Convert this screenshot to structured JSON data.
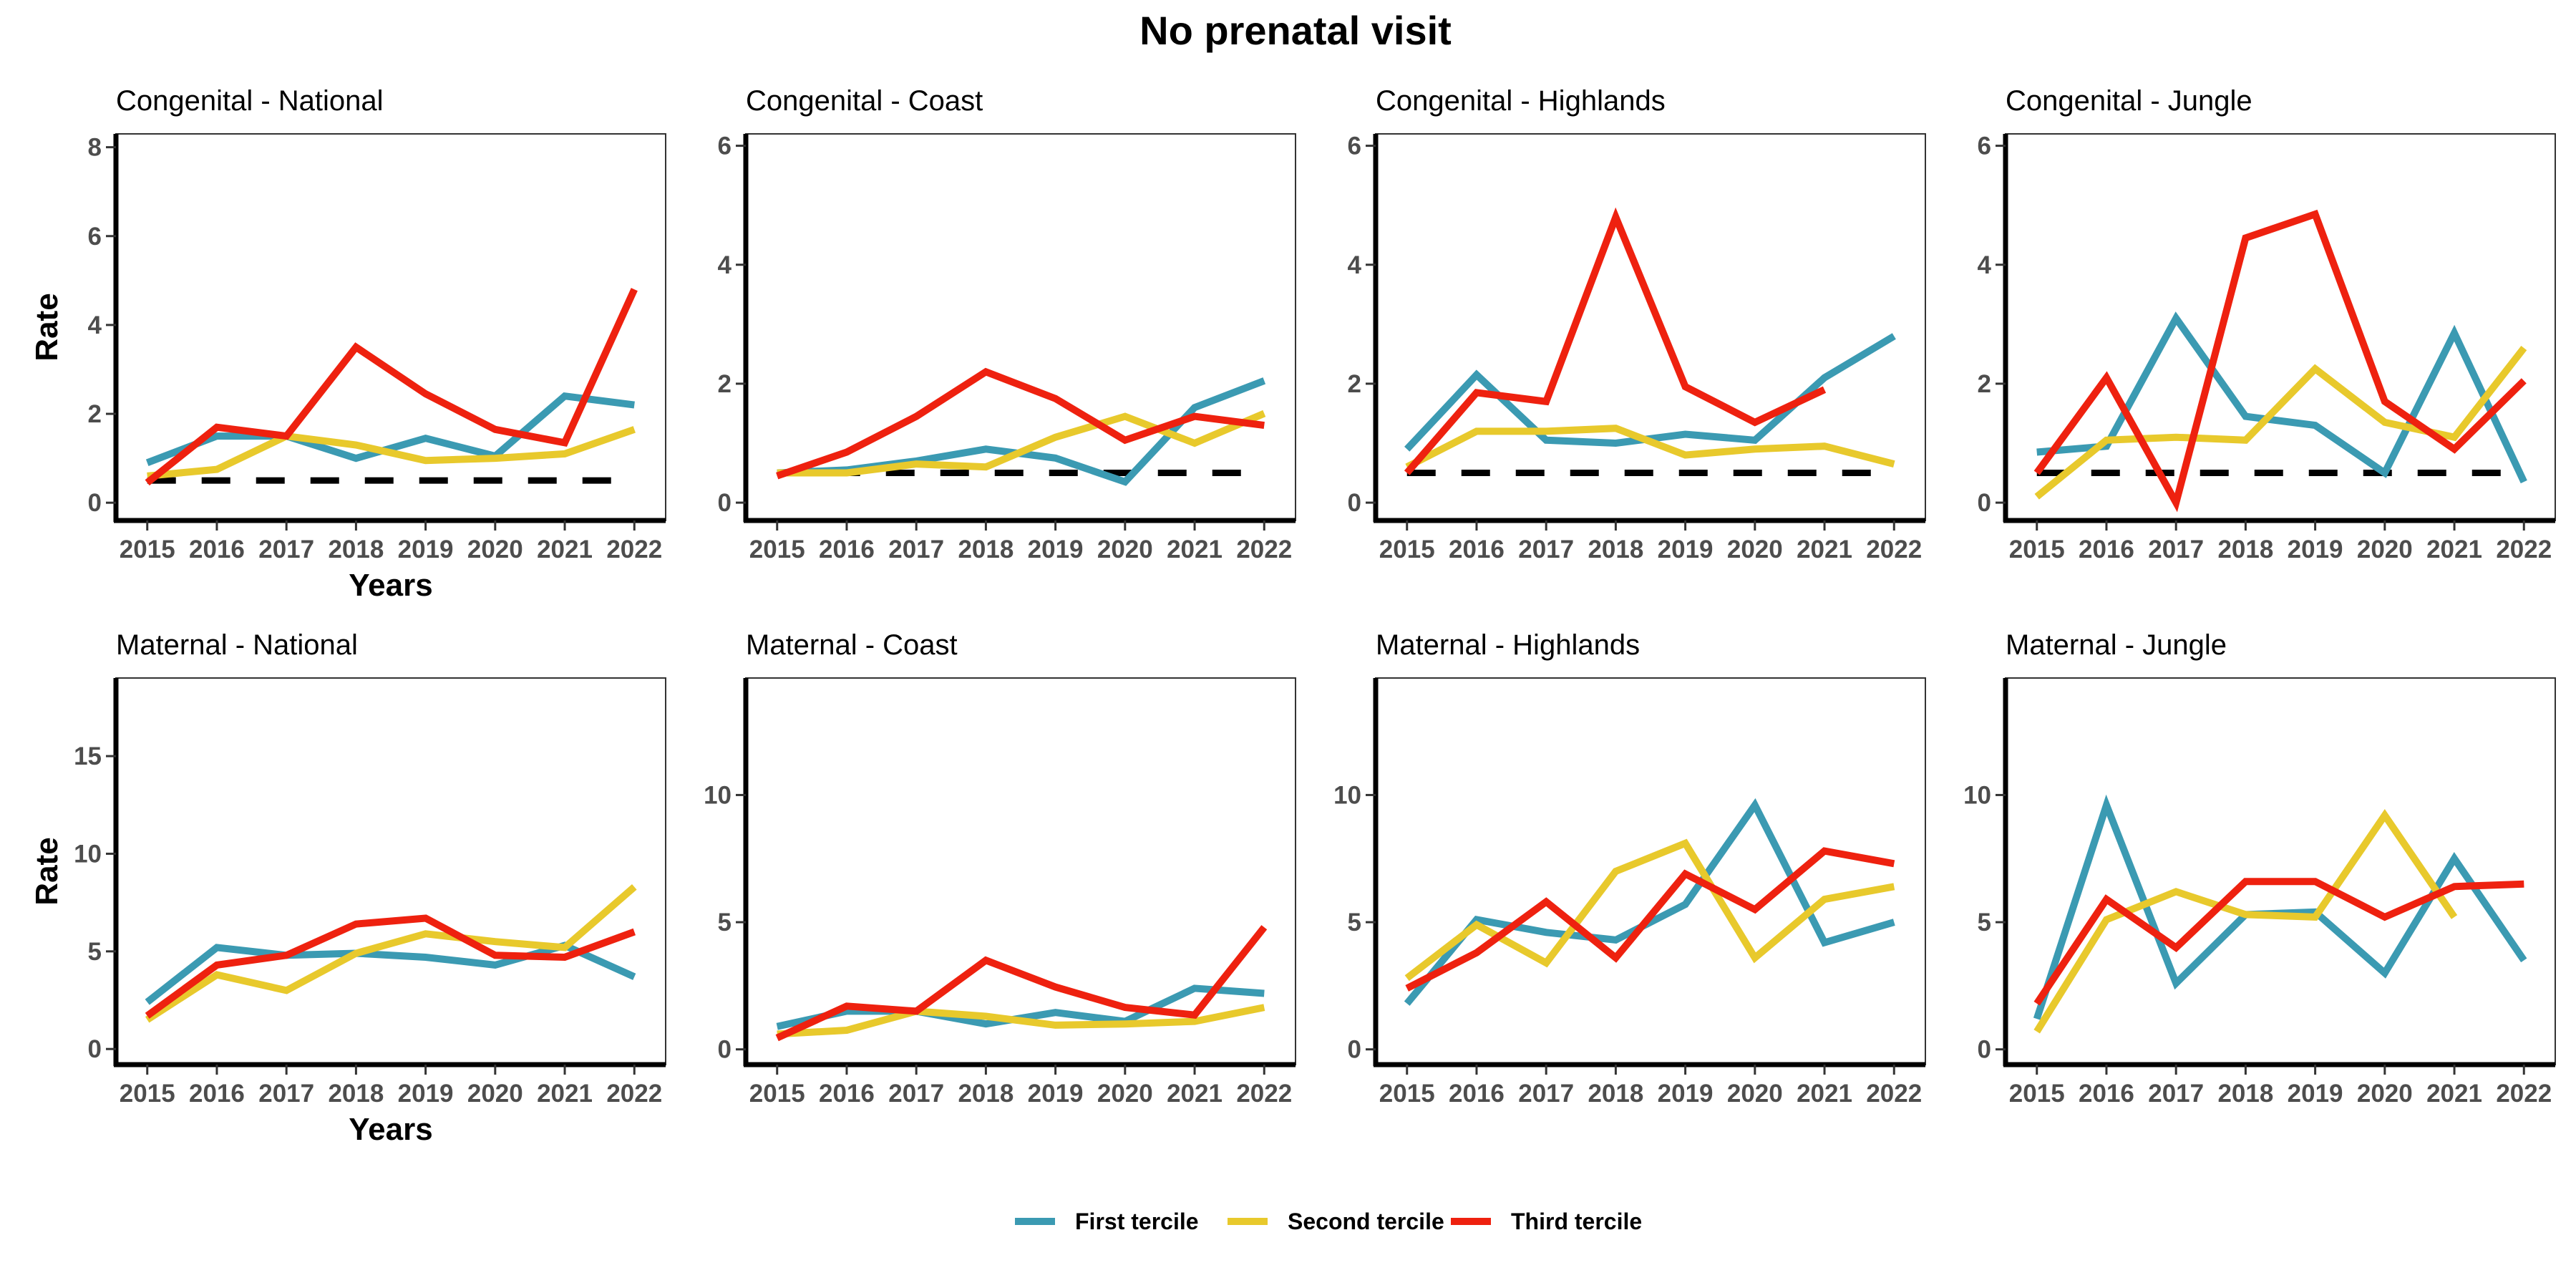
{
  "title": "No prenatal visit",
  "colors": {
    "first": "#3b9ab2",
    "second": "#e8c92c",
    "third": "#ee210f",
    "reference": "#000000"
  },
  "legend": [
    {
      "label": "First tercile",
      "color": "#3b9ab2"
    },
    {
      "label": "Second tercile",
      "color": "#e8c92c"
    },
    {
      "label": "Third tercile",
      "color": "#ee210f"
    }
  ],
  "chart_data": [
    {
      "type": "line",
      "title": "Congenital - National",
      "ylabel": "Rate",
      "xlabel": "Years",
      "x": [
        2015,
        2016,
        2017,
        2018,
        2019,
        2020,
        2021,
        2022
      ],
      "xtick_labels": [
        "2015",
        "2016",
        "2017",
        "2018",
        "2019",
        "2020",
        "2021",
        "2022"
      ],
      "ylim": [
        -0.4,
        8.3
      ],
      "yticks": [
        0,
        2,
        4,
        6,
        8
      ],
      "ytick_labels": [
        "0",
        "2",
        "4",
        "6",
        "8"
      ],
      "reference_line": 0.5,
      "series": [
        {
          "name": "First tercile",
          "values": [
            0.9,
            1.5,
            1.5,
            1.0,
            1.45,
            1.05,
            2.4,
            2.2
          ]
        },
        {
          "name": "Second tercile",
          "values": [
            0.6,
            0.75,
            1.5,
            1.3,
            0.95,
            1.0,
            1.1,
            1.65
          ]
        },
        {
          "name": "Third tercile",
          "values": [
            0.45,
            1.7,
            1.5,
            3.5,
            2.45,
            1.65,
            1.35,
            4.8
          ]
        }
      ]
    },
    {
      "type": "line",
      "title": "Congenital - Coast",
      "ylabel": "",
      "xlabel": "",
      "x": [
        2015,
        2016,
        2017,
        2018,
        2019,
        2020,
        2021,
        2022
      ],
      "xtick_labels": [
        "2015",
        "2016",
        "2017",
        "2018",
        "2019",
        "2020",
        "2021",
        "2022"
      ],
      "ylim": [
        -0.3,
        6.2
      ],
      "yticks": [
        0,
        2,
        4,
        6
      ],
      "ytick_labels": [
        "0",
        "2",
        "4",
        "6"
      ],
      "reference_line": 0.5,
      "series": [
        {
          "name": "First tercile",
          "values": [
            0.5,
            0.55,
            0.7,
            0.9,
            0.75,
            0.35,
            1.6,
            2.05
          ]
        },
        {
          "name": "Second tercile",
          "values": [
            0.5,
            0.5,
            0.65,
            0.6,
            1.1,
            1.45,
            1.0,
            1.5
          ]
        },
        {
          "name": "Third tercile",
          "values": [
            0.45,
            0.85,
            1.45,
            2.2,
            1.75,
            1.05,
            1.45,
            1.3
          ]
        }
      ]
    },
    {
      "type": "line",
      "title": "Congenital - Highlands",
      "ylabel": "",
      "xlabel": "",
      "x": [
        2015,
        2016,
        2017,
        2018,
        2019,
        2020,
        2021,
        2022
      ],
      "xtick_labels": [
        "2015",
        "2016",
        "2017",
        "2018",
        "2019",
        "2020",
        "2021",
        "2022"
      ],
      "ylim": [
        -0.3,
        6.2
      ],
      "yticks": [
        0,
        2,
        4,
        6
      ],
      "ytick_labels": [
        "0",
        "2",
        "4",
        "6"
      ],
      "reference_line": 0.5,
      "series": [
        {
          "name": "First tercile",
          "values": [
            0.9,
            2.15,
            1.05,
            1.0,
            1.15,
            1.05,
            2.1,
            2.8
          ]
        },
        {
          "name": "Second tercile",
          "values": [
            0.6,
            1.2,
            1.2,
            1.25,
            0.8,
            0.9,
            0.95,
            0.65
          ]
        },
        {
          "name": "Third tercile",
          "values": [
            0.5,
            1.85,
            1.7,
            4.8,
            1.95,
            1.35,
            1.9,
            null
          ]
        }
      ]
    },
    {
      "type": "line",
      "title": "Congenital - Jungle",
      "ylabel": "",
      "xlabel": "",
      "x": [
        2015,
        2016,
        2017,
        2018,
        2019,
        2020,
        2021,
        2022
      ],
      "xtick_labels": [
        "2015",
        "2016",
        "2017",
        "2018",
        "2019",
        "2020",
        "2021",
        "2022"
      ],
      "ylim": [
        -0.3,
        6.2
      ],
      "yticks": [
        0,
        2,
        4,
        6
      ],
      "ytick_labels": [
        "0",
        "2",
        "4",
        "6"
      ],
      "reference_line": 0.5,
      "series": [
        {
          "name": "First tercile",
          "values": [
            0.85,
            0.95,
            3.1,
            1.45,
            1.3,
            0.5,
            2.85,
            0.35
          ]
        },
        {
          "name": "Second tercile",
          "values": [
            0.1,
            1.05,
            1.1,
            1.05,
            2.25,
            1.35,
            1.1,
            2.6
          ]
        },
        {
          "name": "Third tercile",
          "values": [
            0.5,
            2.1,
            0.0,
            4.45,
            4.85,
            1.7,
            0.9,
            2.05
          ]
        }
      ]
    },
    {
      "type": "line",
      "title": "Maternal - National",
      "ylabel": "Rate",
      "xlabel": "Years",
      "x": [
        2015,
        2016,
        2017,
        2018,
        2019,
        2020,
        2021,
        2022
      ],
      "xtick_labels": [
        "2015",
        "2016",
        "2017",
        "2018",
        "2019",
        "2020",
        "2021",
        "2022"
      ],
      "ylim": [
        -0.8,
        19.0
      ],
      "yticks": [
        0,
        5,
        10,
        15
      ],
      "ytick_labels": [
        "0",
        "5",
        "10",
        "15"
      ],
      "reference_line": null,
      "series": [
        {
          "name": "First tercile",
          "values": [
            2.4,
            5.2,
            4.8,
            4.9,
            4.7,
            4.3,
            5.3,
            3.7
          ]
        },
        {
          "name": "Second tercile",
          "values": [
            1.5,
            3.8,
            3.0,
            4.9,
            5.9,
            5.5,
            5.2,
            8.3
          ]
        },
        {
          "name": "Third tercile",
          "values": [
            1.7,
            4.3,
            4.8,
            6.4,
            6.7,
            4.8,
            4.7,
            6.0
          ]
        }
      ]
    },
    {
      "type": "line",
      "title": "Maternal - Coast",
      "ylabel": "",
      "xlabel": "",
      "x": [
        2015,
        2016,
        2017,
        2018,
        2019,
        2020,
        2021,
        2022
      ],
      "xtick_labels": [
        "2015",
        "2016",
        "2017",
        "2018",
        "2019",
        "2020",
        "2021",
        "2022"
      ],
      "ylim": [
        -0.6,
        14.6
      ],
      "yticks": [
        0,
        5,
        10
      ],
      "ytick_labels": [
        "0",
        "5",
        "10"
      ],
      "reference_line": null,
      "series": [
        {
          "name": "First tercile",
          "values": [
            0.9,
            1.5,
            1.5,
            1.0,
            1.45,
            1.1,
            2.4,
            2.2
          ]
        },
        {
          "name": "Second tercile",
          "values": [
            0.6,
            0.75,
            1.5,
            1.3,
            0.95,
            1.0,
            1.1,
            1.65
          ]
        },
        {
          "name": "Third tercile",
          "values": [
            0.45,
            1.7,
            1.5,
            3.5,
            2.45,
            1.65,
            1.35,
            4.8
          ]
        }
      ]
    },
    {
      "type": "line",
      "title": "Maternal - Highlands",
      "ylabel": "",
      "xlabel": "",
      "x": [
        2015,
        2016,
        2017,
        2018,
        2019,
        2020,
        2021,
        2022
      ],
      "xtick_labels": [
        "2015",
        "2016",
        "2017",
        "2018",
        "2019",
        "2020",
        "2021",
        "2022"
      ],
      "ylim": [
        -0.6,
        14.6
      ],
      "yticks": [
        0,
        5,
        10
      ],
      "ytick_labels": [
        "0",
        "5",
        "10"
      ],
      "reference_line": null,
      "series": [
        {
          "name": "First tercile",
          "values": [
            1.8,
            5.1,
            4.6,
            4.3,
            5.7,
            9.6,
            4.2,
            5.0
          ]
        },
        {
          "name": "Second tercile",
          "values": [
            2.8,
            4.9,
            3.4,
            7.0,
            8.1,
            3.6,
            5.9,
            6.4
          ]
        },
        {
          "name": "Third tercile",
          "values": [
            2.4,
            3.8,
            5.8,
            3.6,
            6.9,
            5.5,
            7.8,
            7.3
          ]
        }
      ]
    },
    {
      "type": "line",
      "title": "Maternal - Jungle",
      "ylabel": "",
      "xlabel": "",
      "x": [
        2015,
        2016,
        2017,
        2018,
        2019,
        2020,
        2021,
        2022
      ],
      "xtick_labels": [
        "2015",
        "2016",
        "2017",
        "2018",
        "2019",
        "2020",
        "2021",
        "2022"
      ],
      "ylim": [
        -0.6,
        14.6
      ],
      "yticks": [
        0,
        5,
        10
      ],
      "ytick_labels": [
        "0",
        "5",
        "10"
      ],
      "reference_line": null,
      "series": [
        {
          "name": "First tercile",
          "values": [
            1.2,
            9.6,
            2.6,
            5.3,
            5.4,
            3.0,
            7.5,
            3.5
          ]
        },
        {
          "name": "Second tercile",
          "values": [
            0.7,
            5.1,
            6.2,
            5.3,
            5.2,
            9.2,
            5.2,
            null
          ]
        },
        {
          "name": "Third tercile",
          "values": [
            1.8,
            5.9,
            4.0,
            6.6,
            6.6,
            5.2,
            6.4,
            6.5
          ]
        }
      ]
    }
  ]
}
